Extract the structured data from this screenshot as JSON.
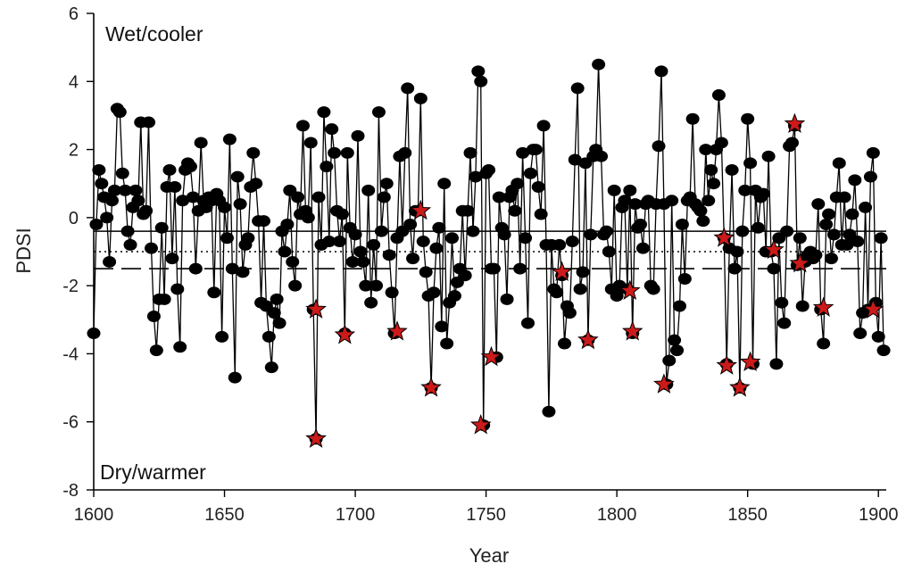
{
  "chart_data": {
    "type": "line",
    "xlabel": "Year",
    "ylabel": "PDSI",
    "xlim": [
      1600,
      1903
    ],
    "ylim": [
      -8,
      6
    ],
    "xticks": [
      1600,
      1650,
      1700,
      1750,
      1800,
      1850,
      1900
    ],
    "yticks": [
      -8,
      -6,
      -4,
      -2,
      0,
      2,
      4,
      6
    ],
    "grid": false,
    "annotations": {
      "top_left": "Wet/cooler",
      "bottom_left": "Dry/warmer"
    },
    "reference_lines": [
      {
        "style": "solid",
        "y": -0.4
      },
      {
        "style": "dotted",
        "y": -1.0
      },
      {
        "style": "dashed",
        "y": -1.5
      }
    ],
    "series": [
      {
        "marker": "circle",
        "color": "#000000",
        "x": [
          1600,
          1601,
          1602,
          1603,
          1604,
          1605,
          1606,
          1607,
          1608,
          1609,
          1610,
          1611,
          1612,
          1613,
          1614,
          1615,
          1616,
          1617,
          1618,
          1619,
          1620,
          1621,
          1622,
          1623,
          1624,
          1625,
          1626,
          1627,
          1628,
          1629,
          1630,
          1631,
          1632,
          1633,
          1634,
          1635,
          1636,
          1637,
          1638,
          1639,
          1640,
          1641,
          1642,
          1643,
          1644,
          1645,
          1646,
          1647,
          1648,
          1649,
          1650,
          1651,
          1652,
          1653,
          1654,
          1655,
          1656,
          1657,
          1658,
          1659,
          1660,
          1661,
          1662,
          1663,
          1664,
          1665,
          1666,
          1667,
          1668,
          1669,
          1670,
          1671,
          1672,
          1673,
          1674,
          1675,
          1676,
          1677,
          1678,
          1679,
          1680,
          1681,
          1682,
          1683,
          1684,
          1685,
          1686,
          1687,
          1688,
          1689,
          1690,
          1691,
          1692,
          1693,
          1694,
          1695,
          1696,
          1697,
          1698,
          1699,
          1700,
          1701,
          1702,
          1703,
          1704,
          1705,
          1706,
          1707,
          1708,
          1709,
          1710,
          1711,
          1712,
          1713,
          1714,
          1715,
          1716,
          1717,
          1718,
          1719,
          1720,
          1721,
          1722,
          1723,
          1724,
          1725,
          1726,
          1727,
          1728,
          1729,
          1730,
          1731,
          1732,
          1733,
          1734,
          1735,
          1736,
          1737,
          1738,
          1739,
          1740,
          1741,
          1742,
          1743,
          1744,
          1745,
          1746,
          1747,
          1748,
          1749,
          1750,
          1751,
          1752,
          1753,
          1754,
          1755,
          1756,
          1757,
          1758,
          1759,
          1760,
          1761,
          1762,
          1763,
          1764,
          1765,
          1766,
          1767,
          1768,
          1769,
          1770,
          1771,
          1772,
          1773,
          1774,
          1775,
          1776,
          1777,
          1778,
          1779,
          1780,
          1781,
          1782,
          1783,
          1784,
          1785,
          1786,
          1787,
          1788,
          1789,
          1790,
          1791,
          1792,
          1793,
          1794,
          1795,
          1796,
          1797,
          1798,
          1799,
          1800,
          1801,
          1802,
          1803,
          1804,
          1805,
          1806,
          1807,
          1808,
          1809,
          1810,
          1811,
          1812,
          1813,
          1814,
          1815,
          1816,
          1817,
          1818,
          1819,
          1820,
          1821,
          1822,
          1823,
          1824,
          1825,
          1826,
          1827,
          1828,
          1829,
          1830,
          1831,
          1832,
          1833,
          1834,
          1835,
          1836,
          1837,
          1838,
          1839,
          1840,
          1841,
          1842,
          1843,
          1844,
          1845,
          1846,
          1847,
          1848,
          1849,
          1850,
          1851,
          1852,
          1853,
          1854,
          1855,
          1856,
          1857,
          1858,
          1859,
          1860,
          1861,
          1862,
          1863,
          1864,
          1865,
          1866,
          1867,
          1868,
          1869,
          1870,
          1871,
          1872,
          1873,
          1874,
          1875,
          1876,
          1877,
          1878,
          1879,
          1880,
          1881,
          1882,
          1883,
          1884,
          1885,
          1886,
          1887,
          1888,
          1889,
          1890,
          1891,
          1892,
          1893,
          1894,
          1895,
          1896,
          1897,
          1898,
          1899,
          1900,
          1901,
          1902
        ],
        "y": [
          -3.4,
          -0.2,
          1.4,
          1.0,
          0.6,
          0.0,
          -1.3,
          0.5,
          0.8,
          3.2,
          3.1,
          1.3,
          0.8,
          -0.4,
          -0.8,
          0.3,
          0.8,
          0.5,
          2.8,
          0.1,
          0.2,
          2.8,
          -0.9,
          -2.9,
          -3.9,
          -2.4,
          -0.3,
          -2.4,
          0.9,
          1.4,
          -1.2,
          0.9,
          -2.1,
          -3.8,
          0.5,
          1.4,
          1.6,
          1.5,
          0.6,
          -1.5,
          0.2,
          2.2,
          0.5,
          0.3,
          0.6,
          0.5,
          -2.2,
          0.7,
          0.5,
          -3.5,
          0.3,
          -0.6,
          2.3,
          -1.5,
          -4.7,
          1.2,
          0.4,
          -1.6,
          -0.8,
          -0.6,
          0.9,
          1.9,
          1.0,
          -0.1,
          -2.5,
          -0.1,
          -2.6,
          -3.5,
          -4.4,
          -2.8,
          -2.4,
          -3.1,
          -0.4,
          -1.0,
          -0.2,
          0.8,
          -1.3,
          -2.0,
          0.6,
          0.1,
          2.7,
          0.2,
          0.0,
          2.2,
          -2.7,
          -6.5,
          0.6,
          -0.8,
          3.1,
          1.5,
          -0.7,
          2.6,
          1.9,
          0.2,
          -0.7,
          0.1,
          -3.4,
          1.9,
          -0.3,
          -1.3,
          -0.5,
          2.4,
          -1.0,
          -1.3,
          -2.0,
          0.8,
          -2.5,
          -0.8,
          -2.0,
          3.1,
          -0.4,
          0.6,
          1.0,
          -1.1,
          -2.2,
          -3.4,
          -0.6,
          1.8,
          -0.4,
          1.9,
          3.8,
          -0.2,
          -1.2,
          0.2,
          0.2,
          3.5,
          -0.7,
          -1.6,
          -2.3,
          -5.0,
          -2.2,
          -0.9,
          -0.3,
          -3.2,
          1.0,
          -3.7,
          -2.5,
          -0.6,
          -2.3,
          -1.9,
          -1.5,
          0.2,
          -1.7,
          0.2,
          1.9,
          -0.4,
          1.2,
          4.3,
          4.0,
          -6.1,
          1.3,
          1.4,
          -1.5,
          -1.5,
          -4.1,
          0.6,
          -0.3,
          -0.5,
          -2.4,
          0.6,
          0.8,
          0.2,
          1.0,
          -1.5,
          1.9,
          -0.6,
          -3.1,
          1.3,
          2.0,
          2.0,
          0.9,
          0.1,
          2.7,
          -0.8,
          -5.7,
          -0.8,
          -2.1,
          -2.2,
          -0.8,
          -1.7,
          -3.7,
          -2.6,
          -2.8,
          -0.7,
          1.7,
          3.8,
          -2.1,
          -1.6,
          1.6,
          -3.6,
          -0.5,
          1.8,
          2.0,
          4.5,
          1.8,
          -0.5,
          -0.4,
          -1.0,
          -2.1,
          0.8,
          -2.3,
          -2.0,
          0.3,
          0.5,
          -2.1,
          0.8,
          -3.4,
          0.4,
          -0.3,
          -0.2,
          -0.9,
          0.4,
          0.5,
          -2.0,
          -2.1,
          0.4,
          2.1,
          4.3,
          0.4,
          -4.9,
          -4.2,
          0.5,
          -3.6,
          -3.9,
          -2.6,
          -0.2,
          -1.8,
          0.5,
          0.6,
          2.9,
          0.4,
          0.3,
          0.2,
          -0.1,
          2.0,
          0.5,
          1.4,
          1.0,
          2.0,
          3.6,
          2.2,
          -0.6,
          -4.3,
          -0.9,
          1.4,
          -1.5,
          -1.0,
          -5.0,
          -0.4,
          0.8,
          2.9,
          1.6,
          -4.3,
          0.8,
          -0.3,
          0.6,
          0.7,
          -1.0,
          1.8,
          -1.0,
          -1.5,
          -4.3,
          -0.6,
          -2.5,
          -3.1,
          -0.4,
          2.1,
          2.2,
          2.7,
          -1.4,
          -0.6,
          -2.6,
          -1.3,
          -1.1,
          -1.0,
          -1.2,
          -1.1,
          0.4,
          -2.7,
          -3.7,
          -0.2,
          0.1,
          -1.2,
          -0.5,
          0.6,
          1.6,
          -0.8,
          0.6,
          -0.8,
          -0.5,
          0.1,
          1.1,
          -0.7,
          -3.4,
          -2.8,
          0.3,
          -2.7,
          1.2,
          1.9,
          -2.5,
          -3.5,
          -0.6,
          -3.9
        ]
      },
      {
        "marker": "star",
        "color": "#cc1a1a",
        "x": [
          1685,
          1685,
          1696,
          1716,
          1725,
          1729,
          1748,
          1752,
          1779,
          1789,
          1805,
          1806,
          1818,
          1841,
          1842,
          1847,
          1851,
          1860,
          1868,
          1870,
          1879,
          1898
        ],
        "y": [
          -2.7,
          -6.5,
          -3.45,
          -3.35,
          0.2,
          -5.0,
          -6.1,
          -4.1,
          -1.6,
          -3.6,
          -2.15,
          -3.35,
          -4.9,
          -0.6,
          -4.35,
          -5.0,
          -4.25,
          -0.95,
          2.75,
          -1.35,
          -2.65,
          -2.7
        ]
      }
    ]
  }
}
